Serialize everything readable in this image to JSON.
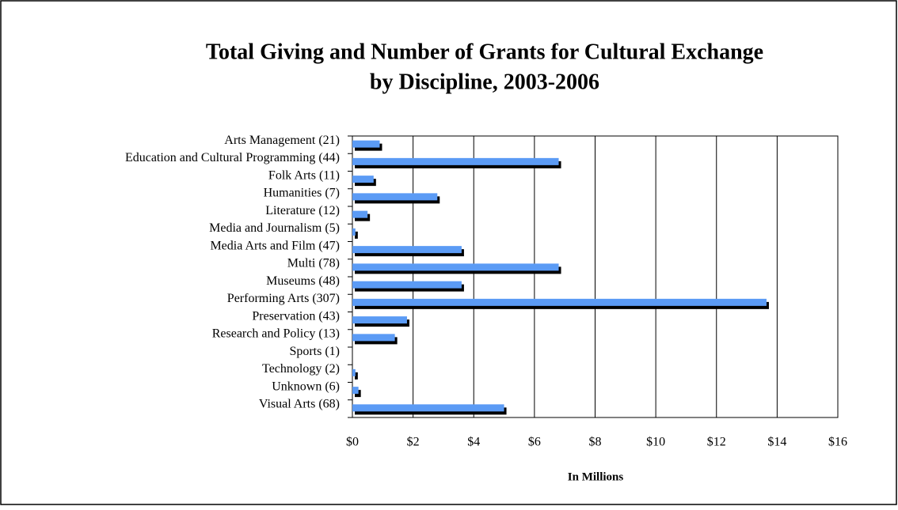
{
  "chart_data": {
    "type": "bar",
    "orientation": "horizontal",
    "title": "Total Giving and Number of Grants for Cultural Exchange",
    "subtitle": "by Discipline, 2003-2006",
    "x_label": "In Millions",
    "categories": [
      "Arts Management (21)",
      "Education and Cultural Programming (44)",
      "Folk Arts (11)",
      "Humanities (7)",
      "Literature (12)",
      "Media and Journalism (5)",
      "Media Arts and Film (47)",
      "Multi (78)",
      "Museums (48)",
      "Performing Arts (307)",
      "Preservation (43)",
      "Research and Policy (13)",
      "Sports (1)",
      "Technology (2)",
      "Unknown (6)",
      "Visual Arts (68)"
    ],
    "values": [
      0.9,
      6.8,
      0.7,
      2.8,
      0.5,
      0.1,
      3.6,
      6.8,
      3.6,
      13.65,
      1.8,
      1.4,
      0,
      0.1,
      0.2,
      5.0
    ],
    "color": "#5b9bf5",
    "shadow_color": "#000000",
    "xlim": [
      0,
      16
    ],
    "xticks": [
      {
        "value": 0,
        "label": "$0"
      },
      {
        "value": 2,
        "label": "$2"
      },
      {
        "value": 4,
        "label": "$4"
      },
      {
        "value": 6,
        "label": "$6"
      },
      {
        "value": 8,
        "label": "$8"
      },
      {
        "value": 10,
        "label": "$10"
      },
      {
        "value": 12,
        "label": "$12"
      },
      {
        "value": 14,
        "label": "$14"
      },
      {
        "value": 16,
        "label": "$16"
      }
    ],
    "grid": true
  }
}
